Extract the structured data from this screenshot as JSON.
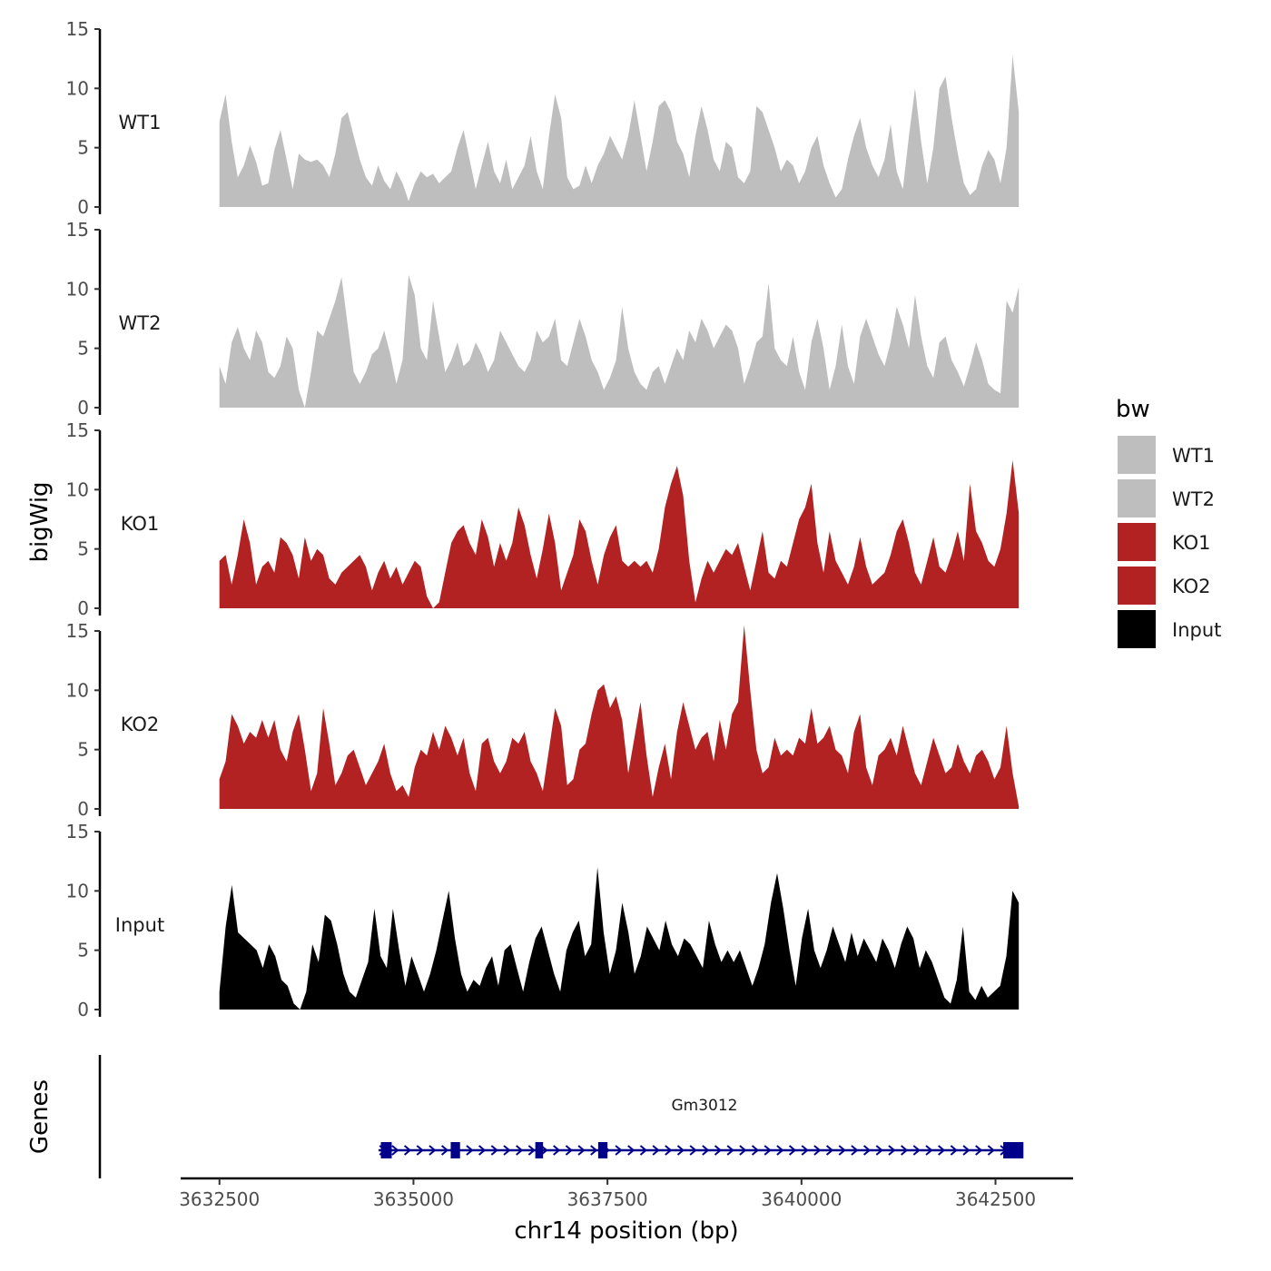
{
  "chart_data": {
    "type": "area",
    "title": "",
    "ylabel": "bigWig",
    "xlabel": "chr14 position (bp)",
    "x_range": [
      3632500,
      3642800
    ],
    "xlim": [
      3632000,
      3643500
    ],
    "xticks": [
      3632500,
      3635000,
      3637500,
      3640000,
      3642500
    ],
    "ylim": [
      0,
      15
    ],
    "yticks": [
      0,
      5,
      10,
      15
    ],
    "legend": {
      "title": "bw",
      "position": "right",
      "entries": [
        {
          "label": "WT1",
          "color": "#bebebe"
        },
        {
          "label": "WT2",
          "color": "#bebebe"
        },
        {
          "label": "KO1",
          "color": "#b22222"
        },
        {
          "label": "KO2",
          "color": "#b22222"
        },
        {
          "label": "Input",
          "color": "#000000"
        }
      ]
    },
    "series": [
      {
        "name": "WT1",
        "color": "#bebebe",
        "values": [
          7.2,
          9.5,
          5.5,
          2.5,
          3.5,
          5.2,
          3.8,
          1.8,
          2.0,
          4.8,
          6.5,
          4.0,
          1.5,
          4.5,
          4.0,
          3.8,
          4.0,
          3.5,
          2.5,
          4.5,
          7.5,
          8.0,
          6.0,
          4.0,
          2.5,
          1.8,
          3.5,
          2.2,
          1.5,
          3.0,
          2.0,
          0.5,
          2.0,
          3.0,
          2.5,
          2.8,
          2.0,
          2.5,
          3.0,
          5.0,
          6.5,
          4.0,
          1.5,
          3.5,
          5.5,
          3.0,
          2.0,
          4.0,
          1.5,
          2.5,
          3.5,
          6.0,
          3.0,
          1.5,
          6.0,
          9.5,
          7.5,
          2.5,
          1.5,
          1.8,
          3.5,
          2.0,
          3.5,
          4.5,
          6.0,
          5.0,
          4.0,
          6.0,
          9.0,
          6.0,
          3.0,
          5.5,
          8.5,
          9.0,
          8.0,
          5.5,
          4.5,
          2.5,
          6.0,
          8.5,
          6.5,
          4.0,
          3.0,
          5.5,
          5.0,
          2.5,
          2.0,
          3.0,
          8.5,
          8.0,
          6.5,
          5.0,
          3.0,
          4.0,
          3.5,
          2.0,
          3.0,
          5.0,
          6.0,
          3.5,
          2.0,
          0.8,
          1.5,
          4.0,
          6.0,
          7.5,
          5.0,
          3.5,
          2.5,
          4.0,
          7.0,
          3.0,
          1.5,
          6.0,
          10.0,
          5.5,
          2.0,
          5.0,
          10.0,
          11.0,
          7.5,
          4.5,
          2.0,
          1.0,
          1.5,
          3.5,
          4.8,
          4.0,
          2.0,
          5.0,
          12.8,
          8.0
        ]
      },
      {
        "name": "WT2",
        "color": "#bebebe",
        "values": [
          3.5,
          2.0,
          5.5,
          6.8,
          5.0,
          4.0,
          6.5,
          5.5,
          3.0,
          2.5,
          3.5,
          6.0,
          5.0,
          1.5,
          0.0,
          3.0,
          6.5,
          6.0,
          7.5,
          9.0,
          11.0,
          7.0,
          3.0,
          2.0,
          3.0,
          4.5,
          5.0,
          6.5,
          4.5,
          2.0,
          4.0,
          11.2,
          9.5,
          5.0,
          4.0,
          9.0,
          6.0,
          3.0,
          4.0,
          5.5,
          3.5,
          4.0,
          5.5,
          4.5,
          3.0,
          4.0,
          6.5,
          5.5,
          4.5,
          3.5,
          3.0,
          4.0,
          6.5,
          5.5,
          6.0,
          7.5,
          4.0,
          3.5,
          5.5,
          7.5,
          6.0,
          4.0,
          3.0,
          1.5,
          2.5,
          4.0,
          8.5,
          5.0,
          3.0,
          2.0,
          1.5,
          3.0,
          3.5,
          2.0,
          3.5,
          5.0,
          4.0,
          6.5,
          5.5,
          7.5,
          6.5,
          5.0,
          6.0,
          7.0,
          6.5,
          5.0,
          2.0,
          3.5,
          5.5,
          6.0,
          10.5,
          5.0,
          4.0,
          3.5,
          6.0,
          3.0,
          1.5,
          5.5,
          7.5,
          5.0,
          1.5,
          3.5,
          7.0,
          3.5,
          2.0,
          6.0,
          7.5,
          6.0,
          4.5,
          3.5,
          5.5,
          8.5,
          7.0,
          5.0,
          9.5,
          6.0,
          3.5,
          2.5,
          5.5,
          6.0,
          4.0,
          3.0,
          1.8,
          3.5,
          5.5,
          4.0,
          2.0,
          1.5,
          1.2,
          9.0,
          8.0,
          10.2
        ]
      },
      {
        "name": "KO1",
        "color": "#b22222",
        "values": [
          4.0,
          4.5,
          2.0,
          4.5,
          7.5,
          5.5,
          2.0,
          3.5,
          4.0,
          3.0,
          6.0,
          5.5,
          4.5,
          2.5,
          6.0,
          4.0,
          5.0,
          4.5,
          2.5,
          2.0,
          3.0,
          3.5,
          4.0,
          4.5,
          3.5,
          1.5,
          3.0,
          4.0,
          2.5,
          3.5,
          2.0,
          3.0,
          4.0,
          3.5,
          1.0,
          0.0,
          0.5,
          3.0,
          5.5,
          6.5,
          7.0,
          5.5,
          4.5,
          7.5,
          6.0,
          3.5,
          5.5,
          4.0,
          5.5,
          8.5,
          7.0,
          4.5,
          2.5,
          5.0,
          8.0,
          5.5,
          1.5,
          3.0,
          4.5,
          7.5,
          6.5,
          4.0,
          2.0,
          4.5,
          6.0,
          7.0,
          4.0,
          3.5,
          4.0,
          3.5,
          4.0,
          3.0,
          5.0,
          8.5,
          10.5,
          12.0,
          9.5,
          4.0,
          0.5,
          2.5,
          4.0,
          3.0,
          4.0,
          5.0,
          4.5,
          5.5,
          3.5,
          1.5,
          4.0,
          6.5,
          3.0,
          2.5,
          4.0,
          3.5,
          5.5,
          7.5,
          8.5,
          10.5,
          5.5,
          3.0,
          6.5,
          4.0,
          3.0,
          2.0,
          3.5,
          6.0,
          3.5,
          2.0,
          2.5,
          3.0,
          4.5,
          6.5,
          7.5,
          5.5,
          3.0,
          2.0,
          4.0,
          6.0,
          3.5,
          3.0,
          4.5,
          6.5,
          4.0,
          10.5,
          6.5,
          5.5,
          4.0,
          3.5,
          5.0,
          8.0,
          12.5,
          8.0
        ]
      },
      {
        "name": "KO2",
        "color": "#b22222",
        "values": [
          2.5,
          4.0,
          8.0,
          7.0,
          5.5,
          6.5,
          6.0,
          7.5,
          6.0,
          7.5,
          5.0,
          4.0,
          6.5,
          8.0,
          5.0,
          1.5,
          3.0,
          8.5,
          5.5,
          2.0,
          3.0,
          4.5,
          5.0,
          3.5,
          2.0,
          3.0,
          4.0,
          5.5,
          3.0,
          1.5,
          2.0,
          1.0,
          3.5,
          5.0,
          4.5,
          6.5,
          5.0,
          7.0,
          6.0,
          4.5,
          6.0,
          3.0,
          1.5,
          5.5,
          6.0,
          4.0,
          3.0,
          4.0,
          6.0,
          5.5,
          6.5,
          4.0,
          3.0,
          1.5,
          5.0,
          8.5,
          7.0,
          2.0,
          2.5,
          5.0,
          5.5,
          8.0,
          10.0,
          10.5,
          8.5,
          9.5,
          7.5,
          3.0,
          6.0,
          9.0,
          4.5,
          1.0,
          3.5,
          5.5,
          2.5,
          6.5,
          9.0,
          7.0,
          5.0,
          6.0,
          6.5,
          4.0,
          7.5,
          5.0,
          8.0,
          9.0,
          15.5,
          10.0,
          5.0,
          3.0,
          3.5,
          6.0,
          4.5,
          5.0,
          4.5,
          6.0,
          5.5,
          8.5,
          5.5,
          6.0,
          7.0,
          5.0,
          4.5,
          3.0,
          6.5,
          8.0,
          3.5,
          2.0,
          4.5,
          5.0,
          6.0,
          4.5,
          7.0,
          5.0,
          3.0,
          2.0,
          4.0,
          6.0,
          4.5,
          3.0,
          3.5,
          5.5,
          4.0,
          3.0,
          4.5,
          5.0,
          4.0,
          2.5,
          3.5,
          7.0,
          3.0,
          0.2
        ]
      },
      {
        "name": "Input",
        "color": "#000000",
        "values": [
          1.5,
          7.0,
          10.5,
          6.5,
          6.0,
          5.5,
          5.0,
          3.5,
          5.5,
          4.5,
          2.5,
          2.0,
          0.5,
          0.0,
          1.5,
          5.5,
          4.0,
          8.0,
          7.5,
          5.5,
          3.0,
          1.5,
          1.0,
          2.5,
          4.0,
          8.5,
          4.5,
          3.5,
          8.5,
          5.0,
          2.0,
          4.5,
          3.0,
          1.5,
          3.0,
          5.0,
          7.5,
          10.0,
          6.0,
          3.0,
          1.5,
          2.5,
          2.0,
          3.5,
          4.5,
          2.0,
          5.0,
          5.5,
          3.5,
          1.5,
          4.0,
          6.0,
          7.0,
          5.0,
          3.0,
          1.5,
          5.0,
          6.5,
          7.5,
          4.5,
          5.5,
          12.0,
          6.5,
          3.0,
          5.0,
          9.0,
          6.5,
          3.0,
          4.5,
          7.0,
          6.0,
          5.0,
          7.5,
          5.5,
          4.5,
          6.0,
          5.5,
          4.5,
          3.5,
          7.5,
          5.5,
          4.0,
          5.0,
          4.0,
          5.0,
          3.5,
          2.0,
          3.5,
          5.5,
          9.0,
          11.5,
          8.5,
          5.0,
          2.0,
          6.0,
          8.5,
          5.0,
          3.5,
          5.0,
          7.0,
          5.5,
          4.0,
          6.5,
          4.5,
          6.0,
          5.0,
          4.0,
          6.0,
          5.0,
          3.5,
          5.5,
          7.0,
          6.0,
          3.5,
          5.0,
          4.0,
          2.5,
          1.0,
          0.5,
          2.5,
          7.0,
          1.5,
          0.8,
          2.0,
          1.0,
          1.5,
          2.0,
          4.5,
          10.0,
          9.0
        ]
      }
    ],
    "genes_track": {
      "label": "Genes",
      "gene_name": "Gm3012",
      "color": "#00008b",
      "line_start": 3634550,
      "line_end": 3642850,
      "exons": [
        {
          "start": 3634580,
          "end": 3634720
        },
        {
          "start": 3635480,
          "end": 3635600
        },
        {
          "start": 3636570,
          "end": 3636670
        },
        {
          "start": 3637380,
          "end": 3637500
        },
        {
          "start": 3642600,
          "end": 3642860
        }
      ],
      "strand": "+"
    }
  }
}
